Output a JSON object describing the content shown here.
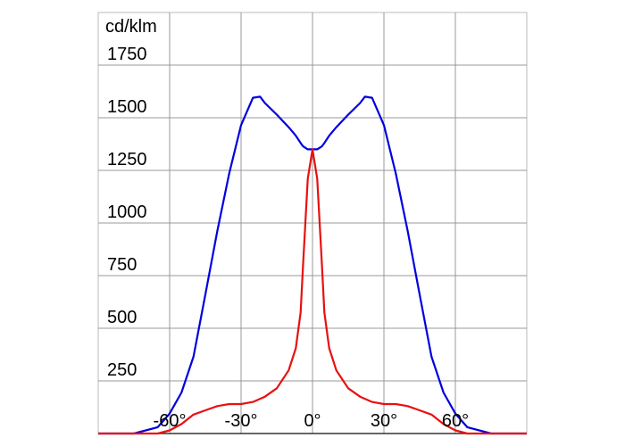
{
  "chart_data": {
    "type": "line",
    "y_label": "cd/klm",
    "x": [
      -90,
      -75,
      -65,
      -60,
      -55,
      -50,
      -45,
      -40,
      -35,
      -30,
      -25,
      -22,
      -20,
      -15,
      -10,
      -7,
      -5,
      -4,
      -2,
      0,
      2,
      4,
      5,
      7,
      10,
      15,
      20,
      22,
      25,
      30,
      35,
      40,
      45,
      50,
      55,
      60,
      65,
      75,
      90
    ],
    "series": [
      {
        "color": "#0000e0",
        "values": [
          0,
          0,
          30,
          95,
          195,
          365,
          660,
          960,
          1235,
          1465,
          1595,
          1600,
          1570,
          1515,
          1455,
          1415,
          1380,
          1365,
          1350,
          1350,
          1350,
          1365,
          1380,
          1415,
          1455,
          1515,
          1570,
          1600,
          1595,
          1465,
          1235,
          960,
          660,
          365,
          195,
          95,
          30,
          0,
          0
        ]
      },
      {
        "color": "#e81010",
        "values": [
          0,
          0,
          0,
          15,
          45,
          90,
          110,
          130,
          140,
          140,
          150,
          165,
          175,
          215,
          300,
          405,
          575,
          790,
          1210,
          1350,
          1210,
          790,
          575,
          405,
          300,
          215,
          175,
          165,
          150,
          140,
          140,
          130,
          110,
          90,
          45,
          15,
          0,
          0,
          0
        ]
      }
    ],
    "xlim": [
      -90,
      90
    ],
    "ylim": [
      0,
      2000
    ],
    "xticks": [
      {
        "value": -60,
        "label": "-60°"
      },
      {
        "value": -30,
        "label": "-30°"
      },
      {
        "value": 0,
        "label": "0°"
      },
      {
        "value": 30,
        "label": "30°"
      },
      {
        "value": 60,
        "label": "60°"
      }
    ],
    "yticks": [
      250,
      500,
      750,
      1000,
      1250,
      1500,
      1750
    ],
    "grid": true
  }
}
